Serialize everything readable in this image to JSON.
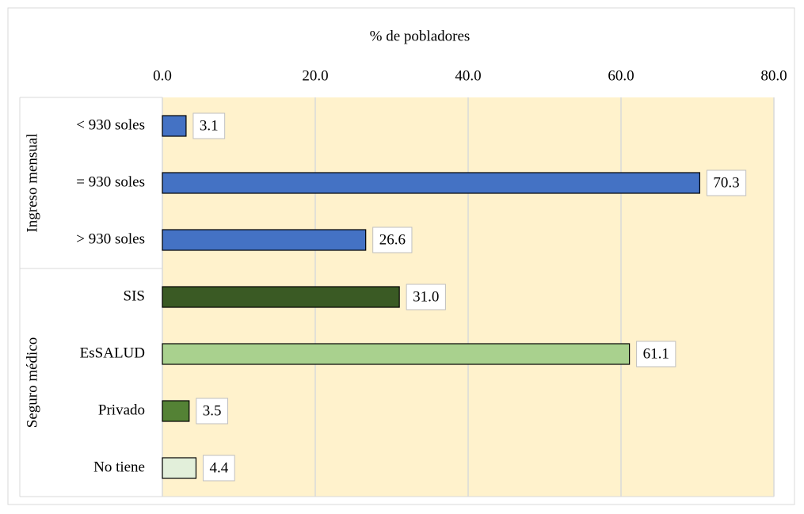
{
  "chart_data": {
    "type": "bar",
    "orientation": "horizontal",
    "title": "% de pobladores",
    "xlim": [
      0,
      80
    ],
    "xticks": [
      {
        "value": 0,
        "label": "0.0"
      },
      {
        "value": 20,
        "label": "20.0"
      },
      {
        "value": 40,
        "label": "40.0"
      },
      {
        "value": 60,
        "label": "60.0"
      },
      {
        "value": 80,
        "label": "80.0"
      }
    ],
    "grid": true,
    "background": "#fff2cc",
    "groups": [
      {
        "name": "Ingreso mensual",
        "categories": [
          "< 930 soles",
          "= 930 soles",
          "> 930 soles"
        ],
        "values": [
          3.1,
          70.3,
          26.6
        ],
        "value_labels": [
          "3.1",
          "70.3",
          "26.6"
        ],
        "colors": [
          "#4472c4",
          "#4472c4",
          "#4472c4"
        ]
      },
      {
        "name": "Seguro médico",
        "categories": [
          "SIS",
          "EsSALUD",
          "Privado",
          "No tiene"
        ],
        "values": [
          31.0,
          61.1,
          3.5,
          4.4
        ],
        "value_labels": [
          "31.0",
          "61.1",
          "3.5",
          "4.4"
        ],
        "colors": [
          "#3a5a24",
          "#a9d18e",
          "#548235",
          "#e2efda"
        ]
      }
    ]
  }
}
